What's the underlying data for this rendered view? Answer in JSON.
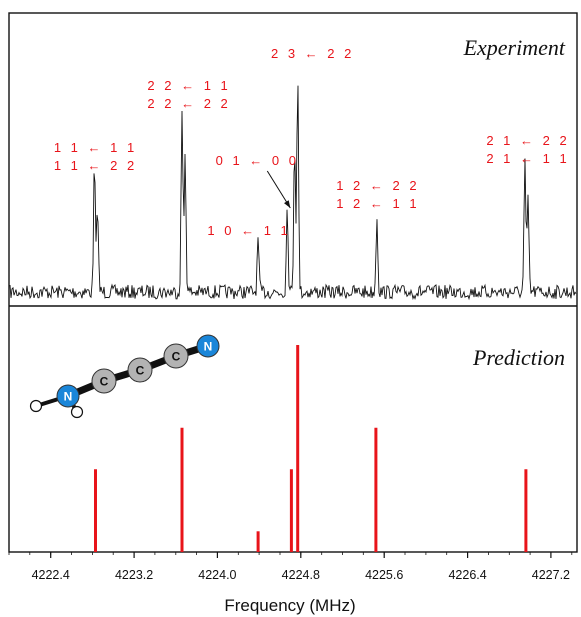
{
  "chart_data": {
    "type": "spectrum",
    "xlabel": "Frequency (MHz)",
    "xlim": [
      4222.0,
      4227.45
    ],
    "xticks": [
      "4222.4",
      "4223.2",
      "4224.0",
      "4224.8",
      "4225.6",
      "4226.4",
      "4227.2"
    ],
    "xtick_values": [
      4222.4,
      4223.2,
      4224.0,
      4224.8,
      4225.6,
      4226.4,
      4227.2
    ],
    "panels": [
      {
        "title": "Experiment",
        "kind": "spectrum trace",
        "peaks": [
          {
            "x": 4222.82,
            "height": 0.6
          },
          {
            "x": 4222.85,
            "height": 0.4
          },
          {
            "x": 4223.66,
            "height": 0.85
          },
          {
            "x": 4223.69,
            "height": 0.65
          },
          {
            "x": 4224.39,
            "height": 0.25
          },
          {
            "x": 4224.67,
            "height": 0.4
          },
          {
            "x": 4224.74,
            "height": 0.7
          },
          {
            "x": 4224.77,
            "height": 1.0
          },
          {
            "x": 4225.53,
            "height": 0.36
          },
          {
            "x": 4226.95,
            "height": 0.6
          },
          {
            "x": 4226.98,
            "height": 0.45
          }
        ],
        "annotations": [
          {
            "lines": [
              "1 1 ← 1 1",
              "1 1 ← 2 2"
            ],
            "x": 4222.83
          },
          {
            "lines": [
              "2 2 ← 1 1",
              "2 2 ← 2 2"
            ],
            "x": 4223.68
          },
          {
            "lines": [
              "1 0 ← 1 1"
            ],
            "x": 4224.39
          },
          {
            "lines": [
              "0 1 ← 0 0"
            ],
            "x": 4224.68,
            "arrow": true
          },
          {
            "lines": [
              "2 3 ← 2 2"
            ],
            "x": 4224.77
          },
          {
            "lines": [
              "1 2 ← 2 2",
              "1 2 ← 1 1"
            ],
            "x": 4225.53
          },
          {
            "lines": [
              "2 1 ← 2 2",
              "2 1 ← 1 1"
            ],
            "x": 4226.97
          }
        ]
      },
      {
        "title": "Prediction",
        "kind": "stick spectrum",
        "sticks": [
          {
            "x": 4222.83,
            "intensity": 0.4
          },
          {
            "x": 4223.66,
            "intensity": 0.6
          },
          {
            "x": 4224.39,
            "intensity": 0.1
          },
          {
            "x": 4224.71,
            "intensity": 0.4
          },
          {
            "x": 4224.77,
            "intensity": 1.0
          },
          {
            "x": 4225.52,
            "intensity": 0.6
          },
          {
            "x": 4226.96,
            "intensity": 0.4
          }
        ]
      }
    ],
    "molecule_atoms": [
      "N",
      "C",
      "C",
      "C",
      "N"
    ],
    "colors": {
      "trace": "#111111",
      "sticks": "#e8141a",
      "labels": "#e8141a",
      "nitrogen": "#1a86d9",
      "carbon": "#b3b3b3",
      "hydrogen": "#ffffff"
    }
  }
}
